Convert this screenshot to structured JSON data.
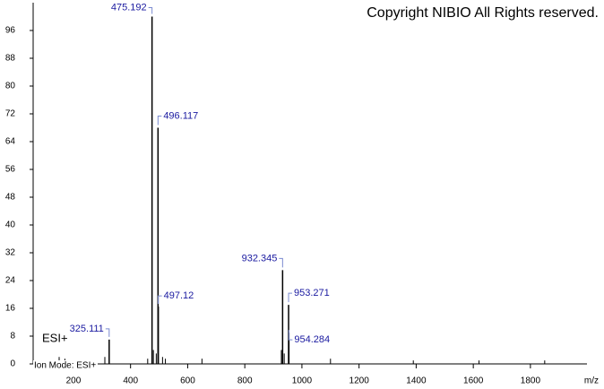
{
  "chart_data": {
    "type": "spectrum",
    "copyright": "Copyright NIBIO All Rights reserved.",
    "mode_label": "ESI+",
    "ion_mode": "Ion Mode: ESI+",
    "x_label": "m/z",
    "x": [
      325.111,
      475.192,
      496.117,
      497.12,
      932.345,
      953.271,
      954.284
    ],
    "values": [
      7,
      100,
      68,
      16.5,
      27,
      17,
      9
    ],
    "noise_x": [
      150,
      170,
      280,
      310,
      460,
      480,
      490,
      512,
      522,
      650,
      928,
      938,
      1100,
      1390,
      1620,
      1850
    ],
    "noise_values": [
      2,
      1.5,
      1,
      2,
      1.5,
      4,
      3,
      2,
      1.5,
      1.5,
      4,
      3,
      1.5,
      1,
      1,
      1
    ],
    "color": "#000000",
    "label_color": "#1a1aa0",
    "xlim": [
      59,
      1998
    ],
    "ylim": [
      0,
      104
    ],
    "xticks": [
      200,
      400,
      600,
      800,
      1000,
      1200,
      1400,
      1600,
      1800
    ],
    "yticks": [
      0,
      8,
      16,
      24,
      32,
      40,
      48,
      56,
      64,
      72,
      80,
      88,
      96
    ]
  }
}
